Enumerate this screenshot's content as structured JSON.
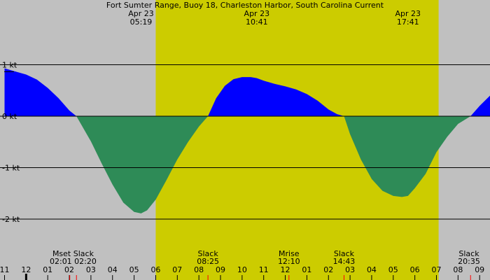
{
  "chart_data": {
    "type": "area",
    "title": "Fort Sumter Range, Buoy 18, Charleston Harbor, South Carolina Current",
    "unit": "kt",
    "x_start_hour": 11,
    "x_end_hour": 33.6,
    "y_range": [
      -2.7,
      1.95
    ],
    "daylight": {
      "start": 18.0,
      "end": 31.1
    },
    "y_ticks": [
      {
        "value": 1,
        "label": "1 kt"
      },
      {
        "value": 0,
        "label": "0 kt"
      },
      {
        "value": -1,
        "label": "-1 kt"
      },
      {
        "value": -2,
        "label": "-2 kt"
      }
    ],
    "x_ticks": [
      {
        "hour": 11,
        "label": "11"
      },
      {
        "hour": 12,
        "label": "12"
      },
      {
        "hour": 13,
        "label": "01"
      },
      {
        "hour": 14,
        "label": "02"
      },
      {
        "hour": 15,
        "label": "03"
      },
      {
        "hour": 16,
        "label": "04"
      },
      {
        "hour": 17,
        "label": "05"
      },
      {
        "hour": 18,
        "label": "06"
      },
      {
        "hour": 19,
        "label": "07"
      },
      {
        "hour": 20,
        "label": "08"
      },
      {
        "hour": 21,
        "label": "09"
      },
      {
        "hour": 22,
        "label": "10"
      },
      {
        "hour": 23,
        "label": "11"
      },
      {
        "hour": 24,
        "label": "12"
      },
      {
        "hour": 25,
        "label": "01"
      },
      {
        "hour": 26,
        "label": "02"
      },
      {
        "hour": 27,
        "label": "03"
      },
      {
        "hour": 28,
        "label": "04"
      },
      {
        "hour": 29,
        "label": "05"
      },
      {
        "hour": 30,
        "label": "06"
      },
      {
        "hour": 31,
        "label": "07"
      },
      {
        "hour": 32,
        "label": "08"
      },
      {
        "hour": 33,
        "label": "09"
      }
    ],
    "peaks": [
      {
        "hour": 17.32,
        "date": "Apr 23",
        "time": "05:19"
      },
      {
        "hour": 22.68,
        "date": "Apr 23",
        "time": "10:41"
      },
      {
        "hour": 29.68,
        "date": "Apr 23",
        "time": "17:41"
      }
    ],
    "events": [
      {
        "hour": 14.02,
        "label": "Mset",
        "time": "02:01",
        "marker": "red"
      },
      {
        "hour": 14.33,
        "label": "Slack",
        "time": "02:20",
        "marker": "red"
      },
      {
        "hour": 20.42,
        "label": "Slack",
        "time": "08:25",
        "marker": "red"
      },
      {
        "hour": 24.17,
        "label": "Mrise",
        "time": "12:10",
        "marker": "red"
      },
      {
        "hour": 26.72,
        "label": "Slack",
        "time": "14:43",
        "marker": "red"
      },
      {
        "hour": 32.58,
        "label": "Slack",
        "time": "20:35",
        "marker": "red"
      }
    ],
    "midnight_hour": 12,
    "series": [
      {
        "x": [
          11.0,
          11.5,
          12.0,
          12.5,
          13.0,
          13.5,
          14.0,
          14.33,
          15.0,
          15.5,
          16.0,
          16.5,
          17.0,
          17.32,
          17.6,
          18.0,
          18.5,
          19.0,
          19.5,
          20.0,
          20.42,
          20.8,
          21.2,
          21.6,
          22.0,
          22.4,
          22.68,
          23.0,
          23.5,
          24.0,
          24.5,
          25.0,
          25.5,
          26.0,
          26.4,
          26.72,
          27.0,
          27.5,
          28.0,
          28.5,
          29.0,
          29.4,
          29.68,
          30.0,
          30.5,
          31.0,
          31.5,
          32.0,
          32.58,
          33.0,
          33.6
        ],
        "values": [
          0.93,
          0.87,
          0.81,
          0.71,
          0.55,
          0.35,
          0.11,
          0.0,
          -0.49,
          -0.92,
          -1.33,
          -1.68,
          -1.86,
          -1.89,
          -1.83,
          -1.62,
          -1.24,
          -0.84,
          -0.5,
          -0.2,
          0.0,
          0.35,
          0.59,
          0.72,
          0.76,
          0.76,
          0.74,
          0.69,
          0.63,
          0.58,
          0.52,
          0.43,
          0.3,
          0.13,
          0.04,
          0.0,
          -0.35,
          -0.84,
          -1.22,
          -1.45,
          -1.55,
          -1.57,
          -1.55,
          -1.4,
          -1.12,
          -0.7,
          -0.4,
          -0.15,
          0.0,
          0.2,
          0.45
        ]
      }
    ],
    "colors": {
      "night": "#c0c0c0",
      "day": "#cccc00",
      "flood": "#0000ff",
      "ebb": "#2e8b57",
      "event_marker": "#ff0000",
      "midnight_marker": "#000000"
    }
  }
}
